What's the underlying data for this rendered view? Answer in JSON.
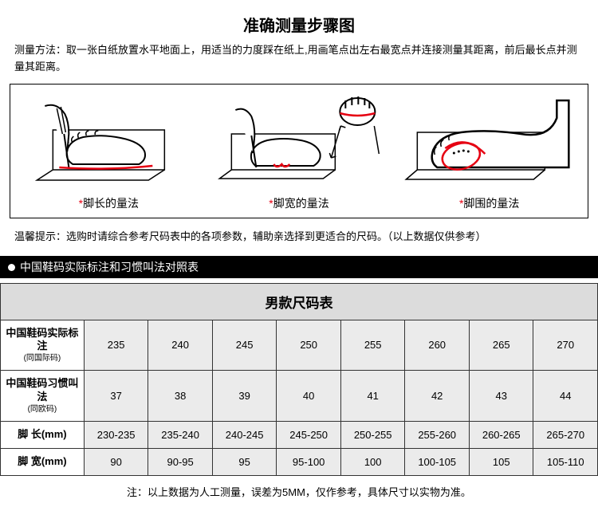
{
  "title": "准确测量步骤图",
  "instructions": "测量方法：取一张白纸放置水平地面上，用适当的力度踩在纸上,用画笔点出左右最宽点并连接测量其距离，前后最长点并测量其距离。",
  "diagrams": [
    {
      "label": "脚长的量法"
    },
    {
      "label": "脚宽的量法"
    },
    {
      "label": "脚围的量法"
    }
  ],
  "tip": "温馨提示：选购时请综合参考尺码表中的各项参数，辅助亲选择到更适合的尺码。（以上数据仅供参考）",
  "black_bar": "中国鞋码实际标注和习惯叫法对照表",
  "table": {
    "title": "男款尺码表",
    "row_labels": [
      {
        "main": "中国鞋码实际标注",
        "sub": "(同国际码)"
      },
      {
        "main": "中国鞋码习惯叫法",
        "sub": "(同欧码)"
      },
      {
        "main": "脚 长(mm)",
        "sub": ""
      },
      {
        "main": "脚 宽(mm)",
        "sub": ""
      }
    ],
    "columns": 8,
    "rows": [
      [
        "235",
        "240",
        "245",
        "250",
        "255",
        "260",
        "265",
        "270"
      ],
      [
        "37",
        "38",
        "39",
        "40",
        "41",
        "42",
        "43",
        "44"
      ],
      [
        "230-235",
        "235-240",
        "240-245",
        "245-250",
        "250-255",
        "255-260",
        "260-265",
        "265-270"
      ],
      [
        "90",
        "90-95",
        "95",
        "95-100",
        "100",
        "100-105",
        "105",
        "105-110"
      ]
    ],
    "col_widths": {
      "label": "14%",
      "data": "10.75%"
    },
    "styles": {
      "title_bg": "#dcdcdc",
      "data_bg": "#ebebeb",
      "border_color": "#333333",
      "font_size": 13
    }
  },
  "note": "注：以上数据为人工测量，误差为5MM，仅作参考，具体尺寸以实物为准。",
  "colors": {
    "accent": "#e60012",
    "black": "#000000",
    "white": "#ffffff"
  }
}
